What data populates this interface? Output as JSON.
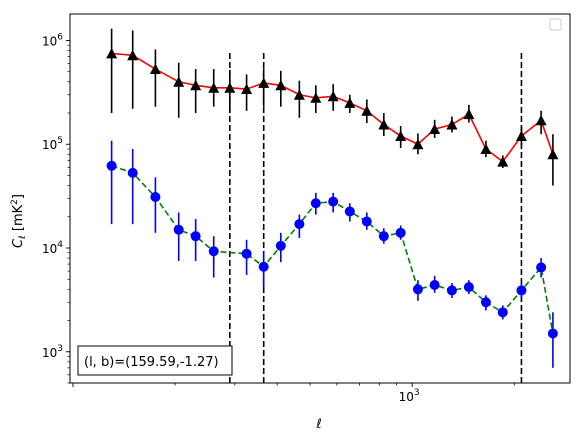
{
  "chart_data": {
    "type": "line",
    "title": "",
    "xlabel": "ℓ",
    "ylabel": "C_ℓ  [mK²]",
    "xscale": "log",
    "yscale": "log",
    "xlim": [
      98,
      2920
    ],
    "ylim": [
      500,
      1800000
    ],
    "grid": false,
    "legend": {
      "placement": "top-right",
      "entries": []
    },
    "x_tick_labels": [
      {
        "value": 1000,
        "mantissa": "10",
        "exponent": "3"
      }
    ],
    "y_tick_labels": [
      {
        "value": 1000,
        "mantissa": "10",
        "exponent": "3"
      },
      {
        "value": 10000,
        "mantissa": "10",
        "exponent": "4"
      },
      {
        "value": 100000,
        "mantissa": "10",
        "exponent": "5"
      },
      {
        "value": 1000000,
        "mantissa": "10",
        "exponent": "6"
      }
    ],
    "vertical_lines": [
      {
        "x": 290,
        "ymin": 500,
        "ymax": 800000,
        "color": "#000000",
        "style": "dashed"
      },
      {
        "x": 365,
        "ymin": 500,
        "ymax": 800000,
        "color": "#000000",
        "style": "dashed"
      },
      {
        "x": 2100,
        "ymin": 500,
        "ymax": 800000,
        "color": "#000000",
        "style": "dashed"
      }
    ],
    "series": [
      {
        "line_color": "#ff0000",
        "marker_color": "#000000",
        "marker": "triangle",
        "line_style": "solid",
        "points": [
          {
            "x": 130,
            "y": 750000,
            "ylo": 200000,
            "yhi": 1300000
          },
          {
            "x": 150,
            "y": 720000,
            "ylo": 220000,
            "yhi": 1250000
          },
          {
            "x": 175,
            "y": 530000,
            "ylo": 230000,
            "yhi": 820000
          },
          {
            "x": 205,
            "y": 400000,
            "ylo": 180000,
            "yhi": 610000
          },
          {
            "x": 230,
            "y": 370000,
            "ylo": 200000,
            "yhi": 530000
          },
          {
            "x": 260,
            "y": 350000,
            "ylo": 230000,
            "yhi": 530000
          },
          {
            "x": 290,
            "y": 350000,
            "ylo": 200000,
            "yhi": 520000
          },
          {
            "x": 325,
            "y": 340000,
            "ylo": 210000,
            "yhi": 470000
          },
          {
            "x": 365,
            "y": 390000,
            "ylo": 230000,
            "yhi": 540000
          },
          {
            "x": 410,
            "y": 370000,
            "ylo": 230000,
            "yhi": 510000
          },
          {
            "x": 465,
            "y": 300000,
            "ylo": 180000,
            "yhi": 410000
          },
          {
            "x": 520,
            "y": 280000,
            "ylo": 200000,
            "yhi": 370000
          },
          {
            "x": 585,
            "y": 290000,
            "ylo": 210000,
            "yhi": 380000
          },
          {
            "x": 655,
            "y": 250000,
            "ylo": 200000,
            "yhi": 300000
          },
          {
            "x": 735,
            "y": 210000,
            "ylo": 160000,
            "yhi": 270000
          },
          {
            "x": 825,
            "y": 155000,
            "ylo": 120000,
            "yhi": 200000
          },
          {
            "x": 925,
            "y": 120000,
            "ylo": 92000,
            "yhi": 150000
          },
          {
            "x": 1040,
            "y": 100000,
            "ylo": 80000,
            "yhi": 127000
          },
          {
            "x": 1165,
            "y": 140000,
            "ylo": 115000,
            "yhi": 172000
          },
          {
            "x": 1310,
            "y": 155000,
            "ylo": 130000,
            "yhi": 185000
          },
          {
            "x": 1470,
            "y": 195000,
            "ylo": 162000,
            "yhi": 240000
          },
          {
            "x": 1650,
            "y": 90000,
            "ylo": 75000,
            "yhi": 108000
          },
          {
            "x": 1850,
            "y": 68000,
            "ylo": 59000,
            "yhi": 78000
          },
          {
            "x": 2100,
            "y": 120000,
            "ylo": 98000,
            "yhi": 145000
          },
          {
            "x": 2400,
            "y": 170000,
            "ylo": 125000,
            "yhi": 210000
          },
          {
            "x": 2600,
            "y": 80000,
            "ylo": 40000,
            "yhi": 125000
          }
        ]
      },
      {
        "line_color": "#008000",
        "marker_color": "#0000ff",
        "marker": "circle",
        "line_style": "dashed",
        "points": [
          {
            "x": 130,
            "y": 62000,
            "ylo": 17000,
            "yhi": 108000
          },
          {
            "x": 150,
            "y": 53000,
            "ylo": 17000,
            "yhi": 90000
          },
          {
            "x": 175,
            "y": 31000,
            "ylo": 14000,
            "yhi": 48000
          },
          {
            "x": 205,
            "y": 15000,
            "ylo": 7500,
            "yhi": 22000
          },
          {
            "x": 230,
            "y": 13000,
            "ylo": 7500,
            "yhi": 19000
          },
          {
            "x": 260,
            "y": 9300,
            "ylo": 5200,
            "yhi": 13000
          },
          {
            "x": 325,
            "y": 8800,
            "ylo": 5500,
            "yhi": 12000
          },
          {
            "x": 365,
            "y": 6600,
            "ylo": 4200,
            "yhi": 9000
          },
          {
            "x": 410,
            "y": 10500,
            "ylo": 7300,
            "yhi": 14000
          },
          {
            "x": 465,
            "y": 17000,
            "ylo": 12500,
            "yhi": 21000
          },
          {
            "x": 520,
            "y": 27000,
            "ylo": 21000,
            "yhi": 34000
          },
          {
            "x": 585,
            "y": 28000,
            "ylo": 22000,
            "yhi": 34000
          },
          {
            "x": 655,
            "y": 22500,
            "ylo": 18000,
            "yhi": 27000
          },
          {
            "x": 735,
            "y": 18000,
            "ylo": 15000,
            "yhi": 22000
          },
          {
            "x": 825,
            "y": 13000,
            "ylo": 11000,
            "yhi": 15500
          },
          {
            "x": 925,
            "y": 14000,
            "ylo": 12000,
            "yhi": 16500
          },
          {
            "x": 1040,
            "y": 4000,
            "ylo": 3100,
            "yhi": 4900
          },
          {
            "x": 1165,
            "y": 4400,
            "ylo": 3700,
            "yhi": 5400
          },
          {
            "x": 1310,
            "y": 3900,
            "ylo": 3300,
            "yhi": 4600
          },
          {
            "x": 1470,
            "y": 4200,
            "ylo": 3600,
            "yhi": 4900
          },
          {
            "x": 1650,
            "y": 3000,
            "ylo": 2500,
            "yhi": 3500
          },
          {
            "x": 1850,
            "y": 2400,
            "ylo": 2050,
            "yhi": 2800
          },
          {
            "x": 2100,
            "y": 3900,
            "ylo": 3300,
            "yhi": 4500
          },
          {
            "x": 2400,
            "y": 6500,
            "ylo": 5200,
            "yhi": 8000
          },
          {
            "x": 2600,
            "y": 1500,
            "ylo": 700,
            "yhi": 2400
          }
        ]
      }
    ],
    "annotation": "(l, b)=(159.59,-1.27)"
  }
}
